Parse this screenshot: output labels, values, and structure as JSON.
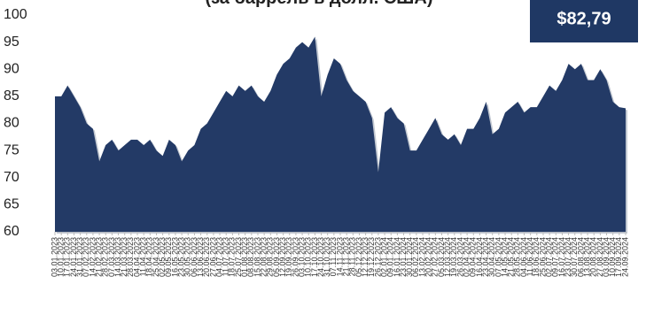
{
  "chart_data": {
    "type": "area",
    "title": "(за баррель в долл. США)",
    "badge": "$82,79",
    "color": "#233a66",
    "ylim": [
      60,
      100
    ],
    "yticks": [
      60,
      65,
      70,
      75,
      80,
      85,
      90,
      95,
      100
    ],
    "categories": [
      "03.01.2023",
      "10.01.2023",
      "17.01.2023",
      "24.01.2023",
      "31.01.2023",
      "07.02.2023",
      "14.02.2023",
      "21.02.2023",
      "28.02.2023",
      "07.03.2023",
      "14.03.2023",
      "21.03.2023",
      "28.03.2023",
      "04.04.2023",
      "11.04.2023",
      "18.04.2023",
      "25.04.2023",
      "02.05.2023",
      "09.05.2023",
      "16.05.2023",
      "23.05.2023",
      "30.05.2023",
      "06.06.2023",
      "13.06.2023",
      "20.06.2023",
      "27.06.2023",
      "04.07.2023",
      "11.07.2023",
      "18.07.2023",
      "25.07.2023",
      "01.08.2023",
      "08.08.2023",
      "15.08.2023",
      "22.08.2023",
      "29.08.2023",
      "05.09.2023",
      "12.09.2023",
      "19.09.2023",
      "26.09.2023",
      "03.10.2023",
      "10.10.2023",
      "17.10.2023",
      "24.10.2023",
      "31.10.2023",
      "07.11.2023",
      "14.11.2023",
      "21.11.2023",
      "28.11.2023",
      "05.12.2023",
      "12.12.2023",
      "19.12.2023",
      "26.12.2023",
      "02.01.2024",
      "09.01.2024",
      "16.01.2024",
      "23.01.2024",
      "30.01.2024",
      "06.02.2024",
      "13.02.2024",
      "20.02.2024",
      "27.02.2024",
      "05.03.2024",
      "12.03.2024",
      "19.03.2024",
      "26.03.2024",
      "02.04.2024",
      "09.04.2024",
      "16.04.2024",
      "23.04.2024",
      "30.04.2024",
      "07.05.2024",
      "14.05.2024",
      "21.05.2024",
      "28.05.2024",
      "04.06.2024",
      "11.06.2024",
      "18.06.2024",
      "25.06.2024",
      "02.07.2024",
      "09.07.2024",
      "16.07.2024",
      "23.07.2024",
      "30.07.2024",
      "06.08.2024",
      "13.08.2024",
      "20.08.2024",
      "27.08.2024",
      "03.09.2024",
      "10.09.2024",
      "17.09.2024",
      "24.09.2024"
    ],
    "values": [
      85,
      85,
      87,
      85,
      83,
      80,
      79,
      73,
      76,
      77,
      75,
      76,
      77,
      77,
      76,
      77,
      75,
      74,
      77,
      76,
      73,
      75,
      76,
      79,
      80,
      82,
      84,
      86,
      85,
      87,
      86,
      87,
      85,
      84,
      86,
      89,
      91,
      92,
      94,
      95,
      94,
      96,
      85,
      89,
      92,
      91,
      88,
      86,
      85,
      84,
      81,
      71,
      82,
      83,
      81,
      80,
      75,
      75,
      77,
      79,
      81,
      78,
      77,
      78,
      76,
      79,
      79,
      81,
      84,
      78,
      79,
      82,
      83,
      84,
      82,
      83,
      83,
      85,
      87,
      86,
      88,
      91,
      90,
      91,
      88,
      88,
      90,
      88,
      84,
      83,
      82.79
    ]
  }
}
